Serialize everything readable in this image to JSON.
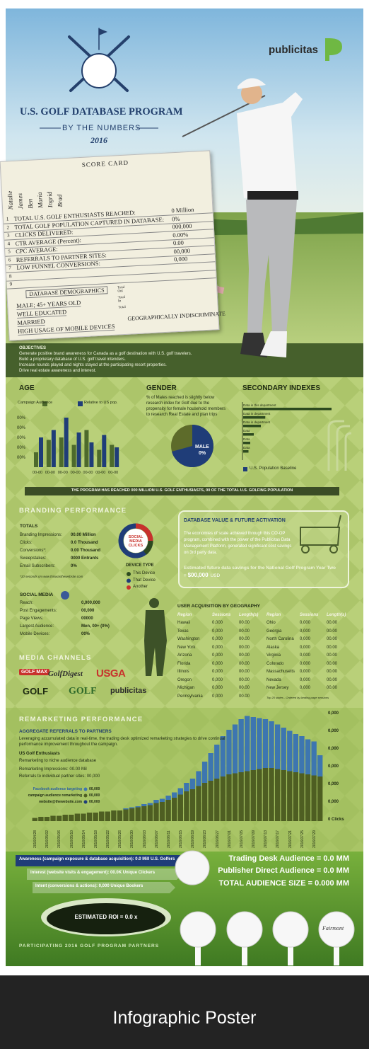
{
  "header": {
    "title": "U.S. GOLF DATABASE PROGRAM",
    "subtitle": "BY THE NUMBERS",
    "year": "2016",
    "brand": "publicitas"
  },
  "scorecard": {
    "title": "Score Card",
    "players": [
      "Natalie",
      "James",
      "Ben",
      "Maria",
      "Ingrid",
      "Brad"
    ],
    "rows": [
      {
        "num": "1",
        "label": "TOTAL U.S. GOLF ENTHUSIASTS REACHED:",
        "value": "0 Million"
      },
      {
        "num": "2",
        "label": "TOTAL GOLF POPULATION CAPTURED IN DATABASE:",
        "value": "0%"
      },
      {
        "num": "3",
        "label": "CLICKS DELIVERED:",
        "value": "000,000"
      },
      {
        "num": "4",
        "label": "CTR AVERAGE (Percent):",
        "value": "0.00%"
      },
      {
        "num": "5",
        "label": "CPC AVERAGE:",
        "value": "0.00"
      },
      {
        "num": "6",
        "label": "REFERRALS TO PARTNER SITES:",
        "value": "00,000"
      },
      {
        "num": "7",
        "label": "LOW FUNNEL CONVERSIONS:",
        "value": "0,000"
      },
      {
        "num": "8"
      },
      {
        "num": "9"
      }
    ],
    "total_labels": [
      "Total Out",
      "Total In",
      "Total"
    ],
    "demographics_title": "Database Demographics",
    "demographics": [
      "MALE; 45+ YEARS OLD",
      "WELL EDUCATED",
      "MARRIED",
      "HIGH USAGE OF MOBILE DEVICES"
    ],
    "extra": "GEOGRAPHICALLY INDISCRIMINATE"
  },
  "objectives": {
    "heading": "OBJECTIVES",
    "items": [
      "Generate positive brand awareness for Canada as a golf destination with U.S. golf travelers.",
      "Build a proprietary database of U.S. golf travel intenders.",
      "Increase rounds played and nights stayed at the participating resort properties.",
      "Drive real estate awareness and interest."
    ]
  },
  "age": {
    "heading": "AGE",
    "type": "bar",
    "y_labels": [
      "00%",
      "00%",
      "00%",
      "00%",
      "00%"
    ],
    "categories": [
      "00-00",
      "00-00",
      "00-00",
      "00-00",
      "00-00",
      "00-00",
      "00-00"
    ],
    "ylim": [
      0,
      100
    ],
    "series": [
      {
        "name": "Campaign Audience",
        "color": "#4d6a2c",
        "values": [
          30,
          55,
          60,
          45,
          75,
          35,
          45
        ]
      },
      {
        "name": "Relative to US pop.",
        "color": "#1f3d78",
        "values": [
          60,
          75,
          100,
          70,
          50,
          65,
          40
        ]
      }
    ]
  },
  "gender": {
    "heading": "GENDER",
    "text": "% of Males reached is slightly below research index for Golf due to the propensity for female household members to research Real Estate and plan trips",
    "donut_label": "MALE",
    "donut_value": "0%"
  },
  "secondary": {
    "heading": "SECONDARY INDEXES",
    "type": "bar",
    "color": "#2d4a1f",
    "categories": [
      "Data in this department",
      "Data in department",
      "Data in department",
      "Data",
      "Data",
      "Data"
    ],
    "values": [
      100,
      25,
      20,
      12,
      8,
      6
    ],
    "xlim": [
      0,
      100
    ],
    "legend": "U.S. Population Baseline",
    "legend_color": "#1f3d78"
  },
  "banner": "THE PROGRAM HAS REACHED 000 MILLION U.S. GOLF ENTHUSIASTS, 00 OF THE TOTAL U.S. GOLFING POPULATION",
  "branding": {
    "heading": "BRANDING PERFORMANCE",
    "totals_heading": "TOTALS",
    "totals": [
      [
        "Branding Impressions:",
        "00.00 Million"
      ],
      [
        "Clicks:",
        "0.0 Thousand"
      ],
      [
        "Conversions*:",
        "0.00 Thousand"
      ],
      [
        "Sweepstakes:",
        "0000 Entrants"
      ],
      [
        "Email Subscribers:",
        "0%"
      ]
    ],
    "footnote": "*10 seconds on www.thiswasthewebsite.com",
    "donut_label": "SOCIAL MEDIA CLICKS",
    "device_heading": "DEVICE TYPE",
    "devices": [
      {
        "name": "This Device",
        "color": "#2d4a1f"
      },
      {
        "name": "That Device",
        "color": "#1f3d78"
      },
      {
        "name": "Another",
        "color": "#c8322c"
      }
    ],
    "social_heading": "SOCIAL MEDIA",
    "social": [
      [
        "Reach:",
        "0,000,000"
      ],
      [
        "Post Engagements:",
        "00,000"
      ],
      [
        "Page Views:",
        "00000"
      ],
      [
        "Largest Audience:",
        "Men, 00+ (0%)"
      ],
      [
        "Mobile Devices:",
        "00%"
      ]
    ]
  },
  "database": {
    "title": "DATABASE VALUE & FUTURE ACTIVATION",
    "text": "The economies of scale achieved through this CO-OP program, combined with the power of the Publicitas Data Management Platform, generated significant cost savings on 3rd party data.",
    "estimate": "Estimated future data savings for the National Golf Program Year Two = ",
    "amount": "$00,000",
    "unit": "USD"
  },
  "geography": {
    "heading": "USER ACQUISITION BY GEOGRAPHY",
    "columns": [
      "Region",
      "Sessions",
      "Length(s)"
    ],
    "left_rows": [
      [
        "Hawaii",
        "0,000",
        "00.00"
      ],
      [
        "Texas",
        "0,000",
        "00.00"
      ],
      [
        "Washington",
        "0,000",
        "00.00"
      ],
      [
        "New York",
        "0,000",
        "00.00"
      ],
      [
        "Arizona",
        "0,000",
        "00.00"
      ],
      [
        "Florida",
        "0,000",
        "00.00"
      ],
      [
        "Illinois",
        "0,000",
        "00.00"
      ],
      [
        "Oregon",
        "0,000",
        "00.00"
      ],
      [
        "Michigan",
        "0,000",
        "00.00"
      ],
      [
        "Pennsylvania",
        "0,000",
        "00.00"
      ]
    ],
    "right_rows": [
      [
        "Ohio",
        "0,000",
        "00.00"
      ],
      [
        "Georgia",
        "0,000",
        "00.00"
      ],
      [
        "North Carolina",
        "0,000",
        "00.00"
      ],
      [
        "Alaska",
        "0,000",
        "00.00"
      ],
      [
        "Virginia",
        "0,000",
        "00.00"
      ],
      [
        "Colorado",
        "0,000",
        "00.00"
      ],
      [
        "Massachusetts",
        "0,000",
        "00.00"
      ],
      [
        "Nevada",
        "0,000",
        "00.00"
      ],
      [
        "New Jersey",
        "0,000",
        "00.00"
      ]
    ],
    "footnote": "Top 20 states - Ordered by landing page sessions"
  },
  "media": {
    "heading": "MEDIA CHANNELS",
    "logos": [
      "GOLF MAX",
      "GolfDigest",
      "USGA",
      "GOLF",
      "GOLF",
      "publicitas"
    ]
  },
  "remarketing": {
    "heading": "REMARKETING PERFORMANCE",
    "subheading": "AGGREGATE REFERRALS TO PARTNERS",
    "text": "Leveraging accumulated data in real-time, the trading desk optimized remarketing strategies to drive continual performance improvement throughout the campaign.",
    "audience": "US Golf Enthusiasts",
    "audience_text": "Remarketing to niche audience database",
    "impressions": "Remarketing Impressions: 00.00 Mil",
    "referrals": "Referrals to individual partner sites: 00,000",
    "legend": [
      [
        "Facebook audience targeting",
        "00,000"
      ],
      [
        "campaign audience remarketing",
        "00,000"
      ],
      [
        "website@thewebsite.com",
        "00,000"
      ]
    ],
    "chart": {
      "type": "bar",
      "stacked": true,
      "ylim": [
        0,
        100
      ],
      "y_labels": [
        "0,000",
        "0,000",
        "0,000",
        "0,000",
        "0,000",
        "0,000",
        "0 Clicks"
      ],
      "categories": [
        "2016/04/28",
        null,
        "2016/05/02",
        null,
        "2016/05/06",
        null,
        "2016/05/10",
        null,
        "2016/05/14",
        null,
        "2016/05/18",
        null,
        "2016/05/22",
        null,
        "2016/05/26",
        null,
        "2016/05/30",
        null,
        "2016/06/03",
        null,
        "2016/06/07",
        null,
        "2016/06/11",
        null,
        "2016/06/15",
        null,
        "2016/06/19",
        null,
        "2016/06/23",
        null,
        "2016/06/27",
        null,
        "2016/07/01",
        null,
        "2016/07/05",
        null,
        "2016/07/09",
        null,
        "2016/07/13",
        null,
        "2016/07/17",
        null,
        "2016/07/21",
        null,
        "2016/07/25",
        null,
        "2016/07/29",
        null
      ],
      "series": [
        {
          "color": "#4e5e22",
          "values": [
            3,
            4,
            4,
            5,
            5,
            6,
            6,
            7,
            7,
            8,
            8,
            9,
            9,
            10,
            10,
            11,
            12,
            13,
            14,
            15,
            17,
            18,
            20,
            22,
            25,
            28,
            30,
            33,
            36,
            38,
            40,
            42,
            44,
            45,
            46,
            47,
            48,
            49,
            50,
            50,
            49,
            48,
            47,
            46,
            45,
            44,
            43,
            42
          ]
        },
        {
          "color": "#3d76b0",
          "values": [
            0,
            0,
            0,
            0,
            0,
            0,
            0,
            0,
            0,
            0,
            0,
            0,
            0,
            0,
            0,
            1,
            1,
            1,
            2,
            2,
            3,
            3,
            4,
            5,
            6,
            8,
            10,
            14,
            20,
            26,
            32,
            38,
            42,
            46,
            50,
            52,
            50,
            48,
            46,
            44,
            42,
            40,
            38,
            36,
            35,
            33,
            32,
            20
          ]
        }
      ]
    }
  },
  "funnel": {
    "awareness": "Awareness (campaign exposure & database acquisition): 0.0 Mill U.S. Golfers",
    "interest": "Interest (website visits & engagement): 00.0K Unique Clickers",
    "intent": "Intent (conversions & actions): 0,000 Unique Bookers",
    "trading": "Trading Desk Audience = 0.0 MM",
    "publisher": "Publisher Direct Audience = 0.0 MM",
    "total": "TOTAL AUDIENCE SIZE = 0.000 MM",
    "roi": "ESTIMATED ROI = 0.0 x"
  },
  "partners": {
    "heading": "PARTICIPATING 2016 GOLF PROGRAM PARTNERS",
    "ball_text": "Fairmont"
  },
  "caption": "Infographic Poster"
}
